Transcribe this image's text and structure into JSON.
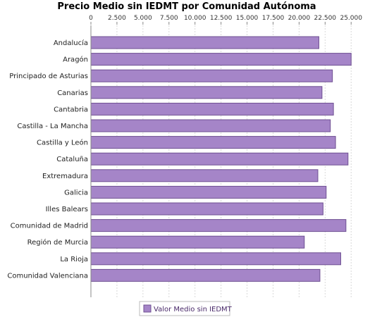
{
  "chart_data": {
    "type": "bar",
    "orientation": "horizontal",
    "title": "Precio Medio sin IEDMT por Comunidad Autónoma",
    "categories": [
      "Andalucía",
      "Aragón",
      "Principado de Asturias",
      "Canarias",
      "Cantabria",
      "Castilla - La Mancha",
      "Castilla y León",
      "Cataluña",
      "Extremadura",
      "Galicia",
      "Illes Balears",
      "Comunidad de Madrid",
      "Región de Murcia",
      "La Rioja",
      "Comunidad Valenciana"
    ],
    "series": [
      {
        "name": "Valor Medio sin IEDMT",
        "values": [
          21900,
          25000,
          23200,
          22200,
          23300,
          23000,
          23500,
          24700,
          21800,
          22600,
          22300,
          24500,
          20500,
          24000,
          22000
        ]
      }
    ],
    "xlim": [
      0,
      26000
    ],
    "x_ticks": [
      "0",
      "2.500",
      "5.000",
      "7.500",
      "10.000",
      "12.500",
      "15.000",
      "17.500",
      "20.000",
      "22.500",
      "25.000"
    ],
    "x_tick_values": [
      0,
      2500,
      5000,
      7500,
      10000,
      12500,
      15000,
      17500,
      20000,
      22500,
      25000
    ],
    "x_axis_position": "top",
    "grid": true,
    "legend": "bottom",
    "colors": {
      "bar_fill": "#a585c8",
      "bar_stroke": "#6e4f92",
      "grid": "#d8d8d8",
      "axis": "#888888"
    }
  }
}
